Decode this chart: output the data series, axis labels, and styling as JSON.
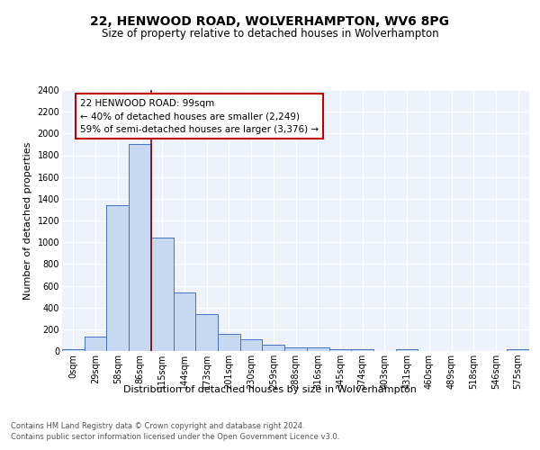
{
  "title": "22, HENWOOD ROAD, WOLVERHAMPTON, WV6 8PG",
  "subtitle": "Size of property relative to detached houses in Wolverhampton",
  "xlabel": "Distribution of detached houses by size in Wolverhampton",
  "ylabel": "Number of detached properties",
  "categories": [
    "0sqm",
    "29sqm",
    "58sqm",
    "86sqm",
    "115sqm",
    "144sqm",
    "173sqm",
    "201sqm",
    "230sqm",
    "259sqm",
    "288sqm",
    "316sqm",
    "345sqm",
    "374sqm",
    "403sqm",
    "431sqm",
    "460sqm",
    "489sqm",
    "518sqm",
    "546sqm",
    "575sqm"
  ],
  "values": [
    20,
    130,
    1340,
    1900,
    1040,
    540,
    340,
    160,
    105,
    55,
    35,
    30,
    20,
    15,
    0,
    20,
    0,
    0,
    0,
    0,
    20
  ],
  "bar_color": "#c6d9f0",
  "bar_edge_color": "#4472c4",
  "vline_x": 3.5,
  "vline_color": "#8b0000",
  "annotation_text": "22 HENWOOD ROAD: 99sqm\n← 40% of detached houses are smaller (2,249)\n59% of semi-detached houses are larger (3,376) →",
  "annotation_box_color": "white",
  "annotation_box_edge_color": "#c00000",
  "ylim": [
    0,
    2400
  ],
  "yticks": [
    0,
    200,
    400,
    600,
    800,
    1000,
    1200,
    1400,
    1600,
    1800,
    2000,
    2200,
    2400
  ],
  "background_color": "#eef3fb",
  "footer_line1": "Contains HM Land Registry data © Crown copyright and database right 2024.",
  "footer_line2": "Contains public sector information licensed under the Open Government Licence v3.0.",
  "title_fontsize": 10,
  "subtitle_fontsize": 8.5,
  "xlabel_fontsize": 8,
  "ylabel_fontsize": 8,
  "tick_fontsize": 7,
  "footer_fontsize": 6,
  "annot_fontsize": 7.5
}
